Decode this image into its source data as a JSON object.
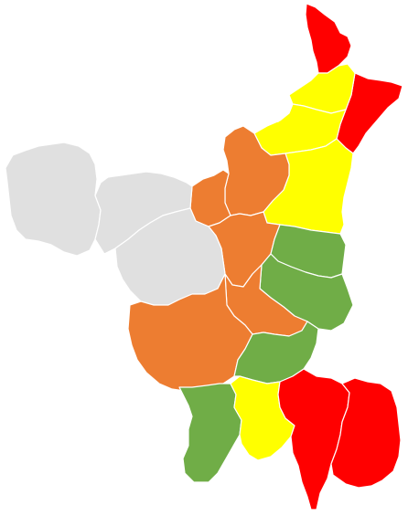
{
  "legend_colors": {
    "red": "#ff0000",
    "yellow": "#ffff00",
    "orange": "#ed7d31",
    "green": "#70ad47",
    "grey": "#e0e0e0"
  },
  "districts": [
    {
      "id": "d01",
      "category": "red"
    },
    {
      "id": "d02",
      "category": "red"
    },
    {
      "id": "d03",
      "category": "yellow"
    },
    {
      "id": "d04",
      "category": "yellow"
    },
    {
      "id": "d05",
      "category": "yellow"
    },
    {
      "id": "d06",
      "category": "orange"
    },
    {
      "id": "d07",
      "category": "orange"
    },
    {
      "id": "d08",
      "category": "orange"
    },
    {
      "id": "d09",
      "category": "grey"
    },
    {
      "id": "d10",
      "category": "grey"
    },
    {
      "id": "d11",
      "category": "grey"
    },
    {
      "id": "d12",
      "category": "green"
    },
    {
      "id": "d13",
      "category": "green"
    },
    {
      "id": "d14",
      "category": "orange"
    },
    {
      "id": "d15",
      "category": "orange"
    },
    {
      "id": "d16",
      "category": "green"
    },
    {
      "id": "d17",
      "category": "green"
    },
    {
      "id": "d18",
      "category": "yellow"
    },
    {
      "id": "d19",
      "category": "red"
    },
    {
      "id": "d20",
      "category": "red"
    }
  ]
}
